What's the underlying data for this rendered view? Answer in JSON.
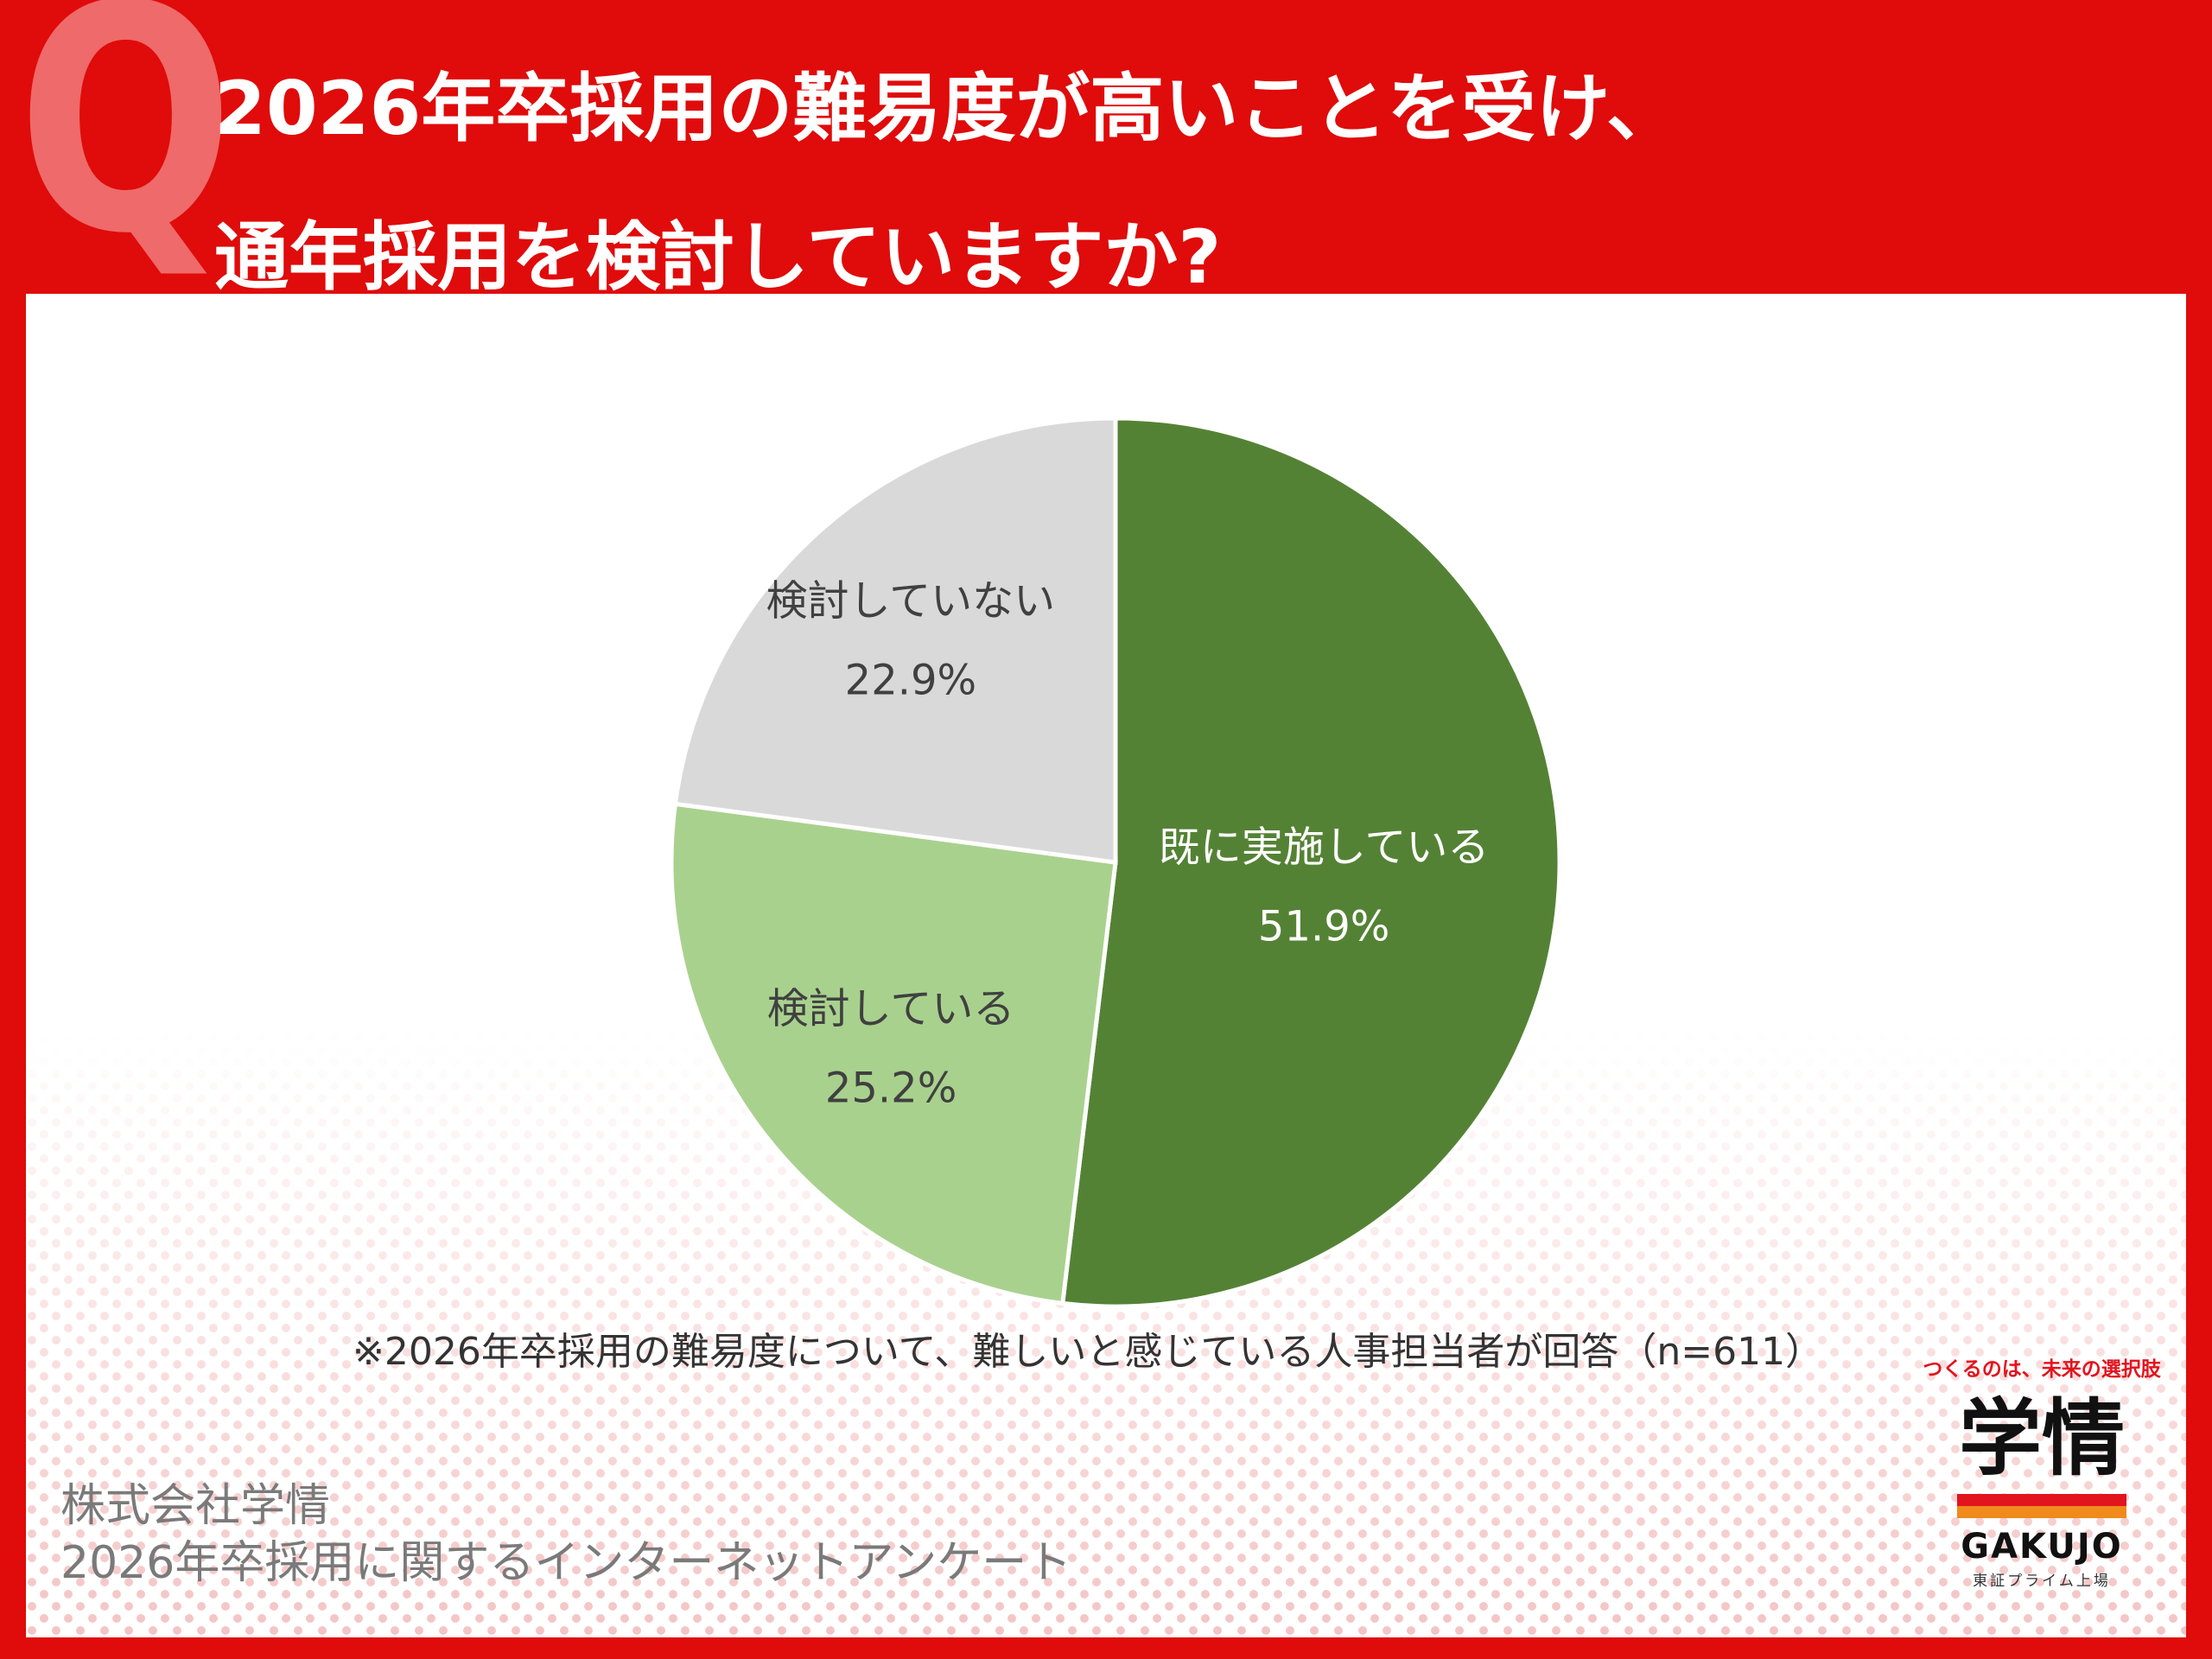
{
  "header": {
    "q_mark": "Q",
    "title_line1": "2026年卒採用の難易度が高いことを受け、",
    "title_line2": "通年採用を検討していますか?"
  },
  "chart_data": {
    "type": "pie",
    "slices": [
      {
        "label": "既に実施している",
        "value": 51.9,
        "value_label": "51.9%",
        "color": "#548235",
        "text_color": "#ffffff"
      },
      {
        "label": "検討している",
        "value": 25.2,
        "value_label": "25.2%",
        "color": "#a9d18e",
        "text_color": "#404040"
      },
      {
        "label": "検討していない",
        "value": 22.9,
        "value_label": "22.9%",
        "color": "#d9d9d9",
        "text_color": "#404040"
      }
    ],
    "start": "12 o'clock",
    "direction": "clockwise",
    "note": "※2026年卒採用の難易度について、難しいと感じている人事担当者が回答（n=611）"
  },
  "source": {
    "line1": "株式会社学情",
    "line2": "2026年卒採用に関するインターネットアンケート"
  },
  "logo": {
    "tagline": "つくるのは、未来の選択肢",
    "mark": "学情",
    "name": "GAKUJO",
    "sub": "東証プライム上場"
  },
  "colors": {
    "header_bg": "#e00b0b",
    "q_mark": "#ef6a6a",
    "panel_bg": "#ffffff",
    "dot_pattern": "#f4c4c4"
  }
}
